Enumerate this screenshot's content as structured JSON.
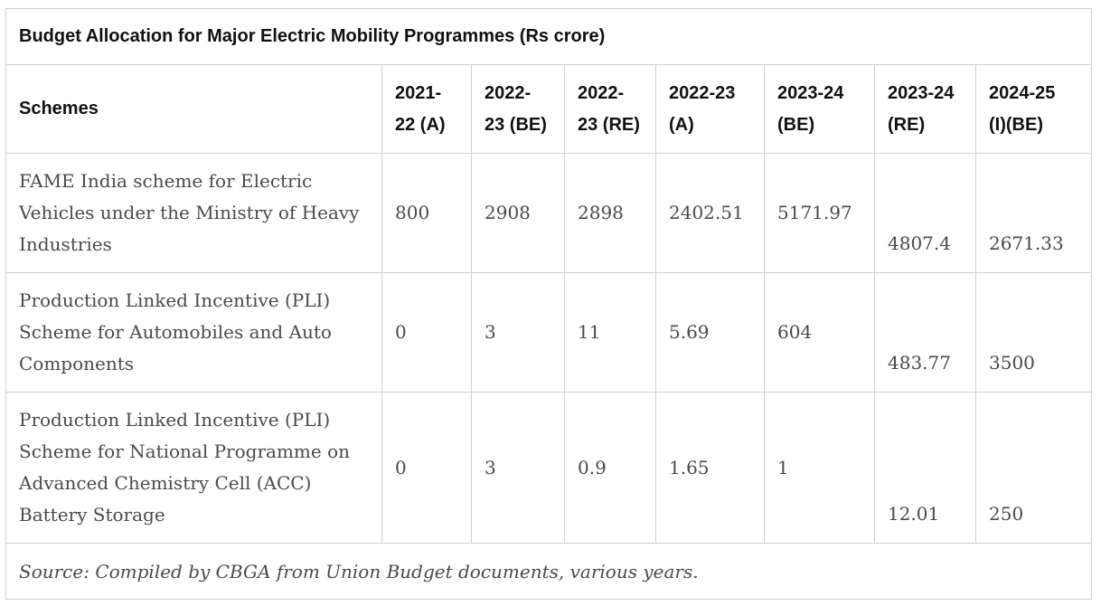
{
  "title": "Budget Allocation for Major Electric Mobility Programmes (Rs crore)",
  "columns": {
    "scheme": "Schemes",
    "c1": [
      "2021-",
      "22 (A)"
    ],
    "c2": [
      "2022-",
      "23 (BE)"
    ],
    "c3": [
      "2022-",
      "23 (RE)"
    ],
    "c4": [
      "2022-23",
      "(A)"
    ],
    "c5": [
      "2023-24",
      "(BE)"
    ],
    "c6": [
      "2023-24",
      "(RE)"
    ],
    "c7": [
      "2024-25",
      "(I)(BE)"
    ]
  },
  "rows": [
    {
      "scheme": "FAME India scheme for Electric Vehicles under the Ministry of Heavy Industries",
      "values": [
        "800",
        "2908",
        "2898",
        "2402.51",
        "5171.97",
        "4807.4",
        "2671.33"
      ]
    },
    {
      "scheme": "Production Linked Incentive (PLI) Scheme for Automobiles and Auto Components",
      "values": [
        "0",
        "3",
        "11",
        "5.69",
        "604",
        "483.77",
        "3500"
      ]
    },
    {
      "scheme": "Production Linked Incentive (PLI) Scheme for National Programme on Advanced Chemistry Cell (ACC) Battery Storage",
      "values": [
        "0",
        "3",
        "0.9",
        "1.65",
        "1",
        "12.01",
        "250"
      ]
    }
  ],
  "source": "Source: Compiled by CBGA from Union Budget documents, various years."
}
